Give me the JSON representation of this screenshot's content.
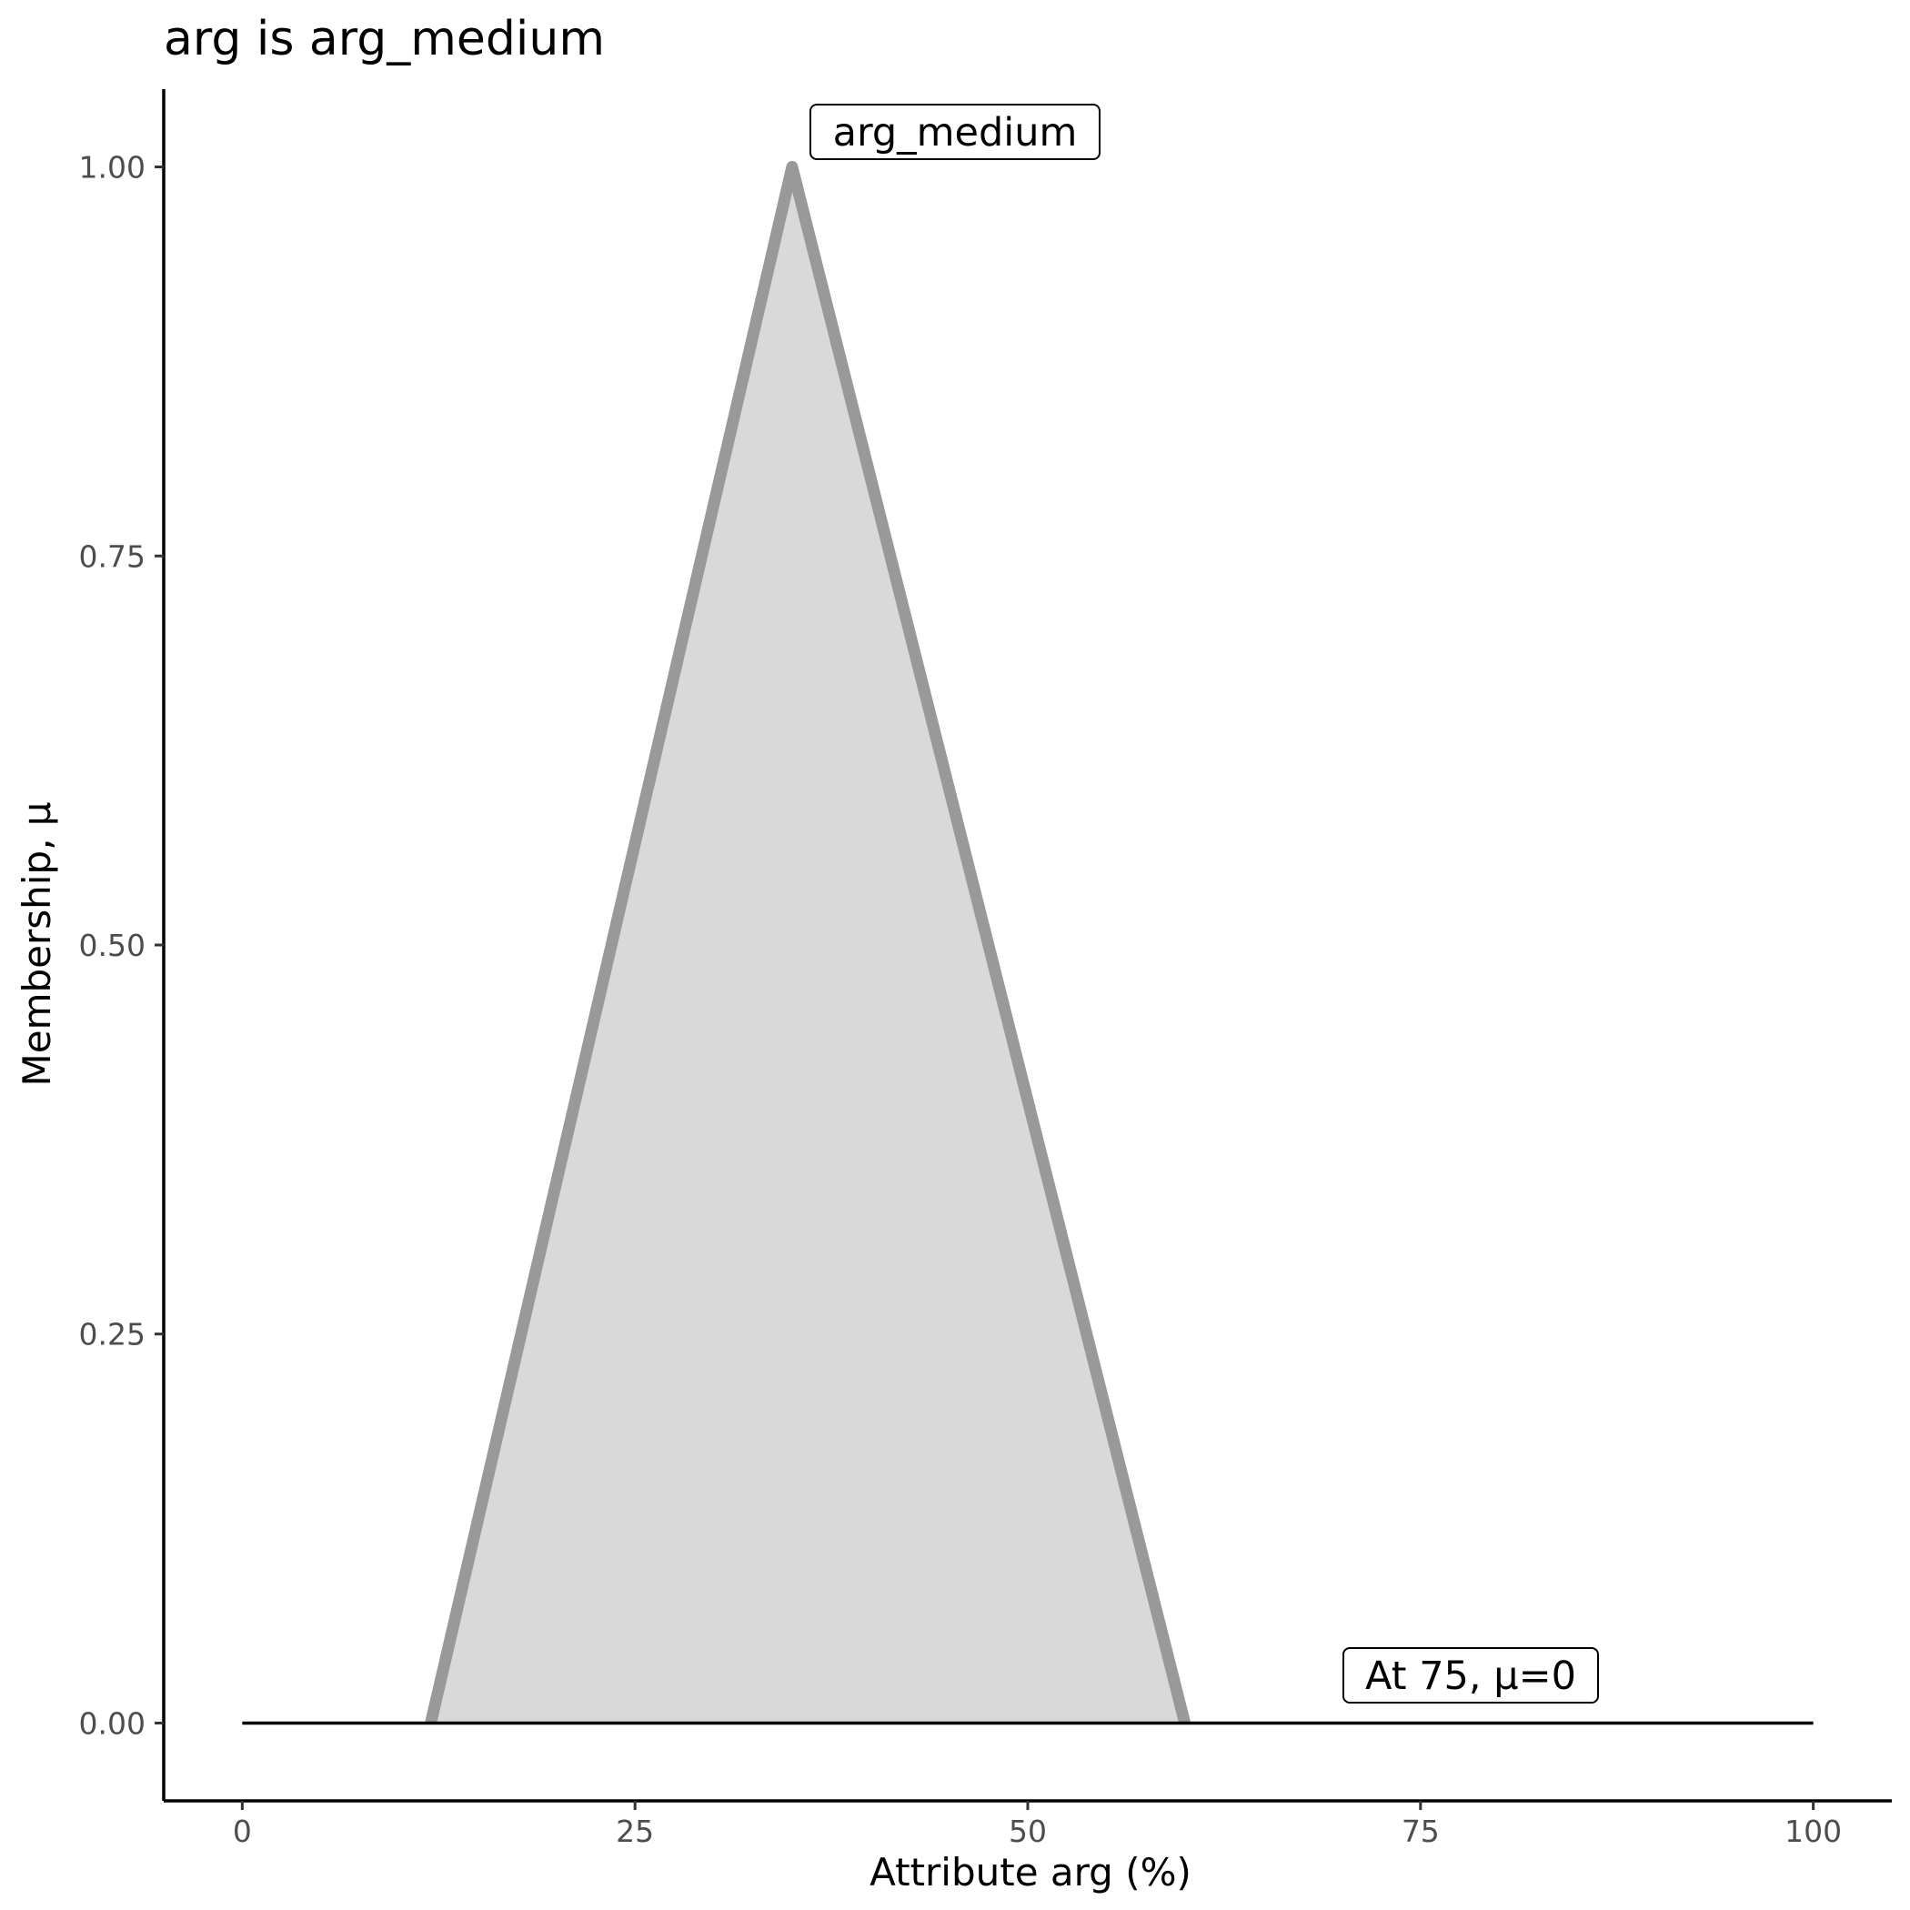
{
  "chart_data": {
    "type": "area",
    "title": "arg is arg_medium",
    "xlabel": "Attribute arg (%)",
    "ylabel": "Membership, μ",
    "xlim": [
      -5,
      105
    ],
    "ylim": [
      -0.05,
      1.05
    ],
    "x_ticks": [
      0,
      25,
      50,
      75,
      100
    ],
    "x_tick_labels": [
      "0",
      "25",
      "50",
      "75",
      "100"
    ],
    "y_ticks": [
      0,
      0.25,
      0.5,
      0.75,
      1.0
    ],
    "y_tick_labels": [
      "0.00",
      "0.25",
      "0.50",
      "0.75",
      "1.00"
    ],
    "grid": false,
    "series": [
      {
        "name": "arg_medium",
        "x": [
          12,
          35,
          60
        ],
        "y": [
          0,
          1,
          0
        ],
        "fill": "#d9d9d9",
        "stroke": "#999999"
      }
    ],
    "baseline": {
      "x": [
        0,
        100
      ],
      "y": 0,
      "color": "#000000"
    },
    "annotations": [
      {
        "text": "arg_medium",
        "x": 35,
        "y": 1.0
      },
      {
        "text": "At 75, μ=0",
        "x": 75,
        "y": 0
      }
    ]
  }
}
